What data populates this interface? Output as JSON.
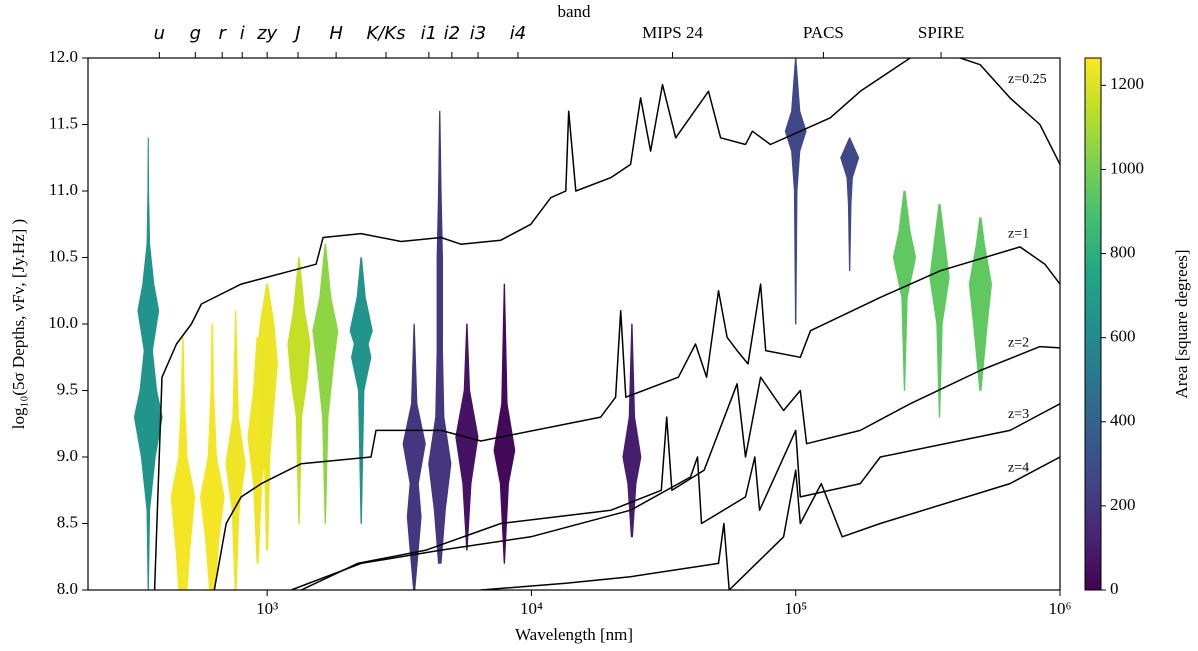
{
  "chart_data": {
    "type": "line",
    "x_label": "Wavelength [nm]",
    "y_label": "log₁₀(5σ Depths, νFν, [Jy.Hz] )",
    "top_label": "band",
    "xscale": "log",
    "xlim": [
      210,
      1000000
    ],
    "ylim": [
      8,
      12
    ],
    "xticks": [
      {
        "value": 1000,
        "label": "10³"
      },
      {
        "value": 10000,
        "label": "10⁴"
      },
      {
        "value": 100000,
        "label": "10⁵"
      },
      {
        "value": 1000000,
        "label": "10⁶"
      }
    ],
    "yticks": [
      {
        "value": 8,
        "label": "8.0"
      },
      {
        "value": 8.5,
        "label": "8.5"
      },
      {
        "value": 9,
        "label": "9.0"
      },
      {
        "value": 9.5,
        "label": "9.5"
      },
      {
        "value": 10,
        "label": "10.0"
      },
      {
        "value": 10.5,
        "label": "10.5"
      },
      {
        "value": 11,
        "label": "11.0"
      },
      {
        "value": 11.5,
        "label": "11.5"
      },
      {
        "value": 12,
        "label": "12.0"
      }
    ],
    "band_ticks": [
      {
        "value": 391,
        "label": "u"
      },
      {
        "value": 535,
        "label": "g"
      },
      {
        "value": 676,
        "label": "r"
      },
      {
        "value": 805,
        "label": "i"
      },
      {
        "value": 1000,
        "label": "zy"
      },
      {
        "value": 1309,
        "label": "J"
      },
      {
        "value": 1824,
        "label": "H"
      },
      {
        "value": 2818,
        "label": "K/Ks"
      },
      {
        "value": 4093,
        "label": "i1"
      },
      {
        "value": 5000,
        "label": "i2"
      },
      {
        "value": 6280,
        "label": "i3"
      },
      {
        "value": 8890,
        "label": "i4"
      },
      {
        "value": 34200,
        "label": "MIPS 24"
      },
      {
        "value": 127300,
        "label": "PACS"
      },
      {
        "value": 354800,
        "label": "SPIRE"
      }
    ],
    "series": [
      {
        "name": "z=0.25",
        "color": "#000000",
        "x": [
          375,
          400,
          454,
          517,
          564,
          798,
          1233,
          1532,
          1629,
          2268,
          3213,
          4550,
          5410,
          7660,
          9950,
          11840,
          13490,
          13840,
          14720,
          19950,
          23730,
          25880,
          28240,
          31340,
          35140,
          46790,
          51970,
          64590,
          68590,
          80200,
          104100,
          135200,
          175500,
          271000,
          352000,
          499000,
          647000,
          839000,
          1000000
        ],
        "values": [
          8.0,
          9.6,
          9.85,
          10.0,
          10.15,
          10.3,
          10.4,
          10.45,
          10.65,
          10.68,
          10.62,
          10.65,
          10.6,
          10.63,
          10.75,
          10.95,
          11.0,
          11.6,
          11.0,
          11.1,
          11.2,
          11.7,
          11.3,
          11.8,
          11.4,
          11.75,
          11.4,
          11.35,
          11.45,
          11.35,
          11.45,
          11.55,
          11.75,
          12.0,
          12.05,
          11.95,
          11.7,
          11.5,
          11.2
        ]
      },
      {
        "name": "z=1",
        "color": "#000000",
        "x": [
          631,
          700,
          798,
          951,
          1346,
          2472,
          2582,
          4550,
          6440,
          18280,
          20830,
          21760,
          22750,
          36000,
          41780,
          46000,
          51050,
          55000,
          60000,
          66000,
          73620,
          77000,
          104100,
          113800,
          208900,
          352000,
          706000,
          877000,
          1000000
        ],
        "values": [
          8.0,
          8.5,
          8.7,
          8.8,
          8.95,
          9.0,
          9.2,
          9.2,
          9.12,
          9.3,
          9.45,
          10.1,
          9.45,
          9.6,
          9.85,
          9.6,
          10.25,
          9.9,
          9.8,
          9.7,
          10.3,
          9.8,
          9.75,
          9.95,
          10.2,
          10.4,
          10.58,
          10.45,
          10.3
        ]
      },
      {
        "name": "z=2",
        "color": "#000000",
        "x": [
          1346,
          2200,
          4000,
          7660,
          20000,
          31000,
          32500,
          34000,
          45000,
          60000,
          64590,
          73620,
          90000,
          104100,
          110000,
          175500,
          271000,
          499000,
          839000,
          1000000
        ],
        "values": [
          8.0,
          8.2,
          8.3,
          8.5,
          8.6,
          8.75,
          9.3,
          8.75,
          8.9,
          9.55,
          9.0,
          9.6,
          9.35,
          9.5,
          9.1,
          9.2,
          9.4,
          9.65,
          9.83,
          9.82
        ]
      },
      {
        "name": "z=3",
        "color": "#000000",
        "x": [
          1233,
          2268,
          4550,
          9950,
          23730,
          40000,
          42500,
          44000,
          64590,
          70000,
          73000,
          100000,
          104100,
          175500,
          208900,
          647000,
          1000000
        ],
        "values": [
          8.0,
          8.2,
          8.3,
          8.4,
          8.6,
          8.85,
          9.0,
          8.5,
          8.7,
          9.0,
          8.6,
          9.2,
          8.7,
          8.8,
          9.0,
          9.2,
          9.4
        ]
      },
      {
        "name": "z=4",
        "color": "#000000",
        "x": [
          6440,
          13490,
          23730,
          51050,
          53500,
          56000,
          90000,
          100000,
          104100,
          125000,
          150000,
          208900,
          647000,
          1000000
        ],
        "values": [
          8.0,
          8.05,
          8.1,
          8.2,
          8.5,
          8.0,
          8.4,
          8.9,
          8.5,
          8.8,
          8.4,
          8.5,
          8.8,
          9.0
        ]
      }
    ],
    "violins": [
      {
        "x": 355,
        "area": 650,
        "depths": [
          8.0,
          8.6,
          9.0,
          9.3,
          9.5,
          9.8,
          10.1,
          10.3,
          10.6,
          11.0,
          11.4
        ],
        "density": [
          0.02,
          0.1,
          0.5,
          1.0,
          0.6,
          0.3,
          0.75,
          0.4,
          0.1,
          0.03,
          0.01
        ]
      },
      {
        "x": 480,
        "area": 1250,
        "depths": [
          8.0,
          8.3,
          8.7,
          9.0,
          9.5,
          9.9
        ],
        "density": [
          0.3,
          0.5,
          0.85,
          0.3,
          0.1,
          0.03
        ]
      },
      {
        "x": 620,
        "area": 1250,
        "depths": [
          8.0,
          8.4,
          8.7,
          9.0,
          9.5,
          10.0
        ],
        "density": [
          0.2,
          0.5,
          0.85,
          0.3,
          0.1,
          0.03
        ]
      },
      {
        "x": 760,
        "area": 1240,
        "depths": [
          8.0,
          8.6,
          8.95,
          9.3,
          9.8,
          10.1
        ],
        "density": [
          0.05,
          0.25,
          0.7,
          0.2,
          0.08,
          0.02
        ]
      },
      {
        "x": 920,
        "area": 1240,
        "depths": [
          8.2,
          8.8,
          9.15,
          9.5,
          9.9
        ],
        "density": [
          0.05,
          0.3,
          0.7,
          0.3,
          0.05
        ]
      },
      {
        "x": 1000,
        "area": 1230,
        "depths": [
          8.3,
          9.0,
          9.4,
          9.7,
          10.0,
          10.3
        ],
        "density": [
          0.05,
          0.2,
          0.5,
          0.75,
          0.5,
          0.05
        ]
      },
      {
        "x": 1320,
        "area": 1150,
        "depths": [
          8.5,
          9.3,
          9.6,
          9.85,
          10.1,
          10.5
        ],
        "density": [
          0.02,
          0.2,
          0.6,
          0.8,
          0.4,
          0.03
        ]
      },
      {
        "x": 1660,
        "area": 1050,
        "depths": [
          8.5,
          9.3,
          9.7,
          9.95,
          10.2,
          10.6
        ],
        "density": [
          0.02,
          0.2,
          0.6,
          0.9,
          0.4,
          0.03
        ]
      },
      {
        "x": 2270,
        "area": 650,
        "depths": [
          8.5,
          9.5,
          9.75,
          9.85,
          9.95,
          10.2,
          10.5
        ],
        "density": [
          0.02,
          0.2,
          0.7,
          0.5,
          0.8,
          0.3,
          0.03
        ]
      },
      {
        "x": 3600,
        "area": 200,
        "depths": [
          8.0,
          8.3,
          8.55,
          8.8,
          9.1,
          9.4,
          10.0
        ],
        "density": [
          0.05,
          0.3,
          0.5,
          0.3,
          0.8,
          0.2,
          0.02
        ]
      },
      {
        "x": 4500,
        "area": 200,
        "depths": [
          8.2,
          8.6,
          8.95,
          9.3,
          9.8,
          10.5,
          11.0,
          11.6
        ],
        "density": [
          0.1,
          0.4,
          0.8,
          0.3,
          0.2,
          0.2,
          0.1,
          0.02
        ]
      },
      {
        "x": 5700,
        "area": 60,
        "depths": [
          8.3,
          8.8,
          9.15,
          9.5,
          10.0
        ],
        "density": [
          0.02,
          0.3,
          0.8,
          0.2,
          0.02
        ]
      },
      {
        "x": 7900,
        "area": 30,
        "depths": [
          8.2,
          8.8,
          9.05,
          9.4,
          10.3
        ],
        "density": [
          0.02,
          0.3,
          0.75,
          0.2,
          0.02
        ]
      },
      {
        "x": 24000,
        "area": 100,
        "depths": [
          8.4,
          8.8,
          9.0,
          9.3,
          10.0
        ],
        "density": [
          0.05,
          0.3,
          0.65,
          0.2,
          0.02
        ]
      },
      {
        "x": 100000,
        "area": 270,
        "depths": [
          10.0,
          11.0,
          11.3,
          11.45,
          11.6,
          12.0
        ],
        "density": [
          0.02,
          0.1,
          0.3,
          0.75,
          0.3,
          0.02
        ]
      },
      {
        "x": 160000,
        "area": 270,
        "depths": [
          10.4,
          10.9,
          11.1,
          11.25,
          11.4
        ],
        "density": [
          0.02,
          0.1,
          0.2,
          0.65,
          0.02
        ]
      },
      {
        "x": 258000,
        "area": 950,
        "depths": [
          9.5,
          10.2,
          10.5,
          10.7,
          11.0
        ],
        "density": [
          0.02,
          0.2,
          0.8,
          0.4,
          0.05
        ]
      },
      {
        "x": 350000,
        "area": 950,
        "depths": [
          9.3,
          10.0,
          10.35,
          10.6,
          10.9
        ],
        "density": [
          0.02,
          0.2,
          0.7,
          0.4,
          0.05
        ]
      },
      {
        "x": 500000,
        "area": 950,
        "depths": [
          9.5,
          10.0,
          10.3,
          10.6,
          10.8
        ],
        "density": [
          0.05,
          0.5,
          0.8,
          0.3,
          0.05
        ]
      }
    ],
    "colorbar": {
      "label": "Area [square degrees]",
      "clim": [
        0,
        1265
      ],
      "ticks": [
        0,
        200,
        400,
        600,
        800,
        1000,
        1200
      ]
    }
  }
}
